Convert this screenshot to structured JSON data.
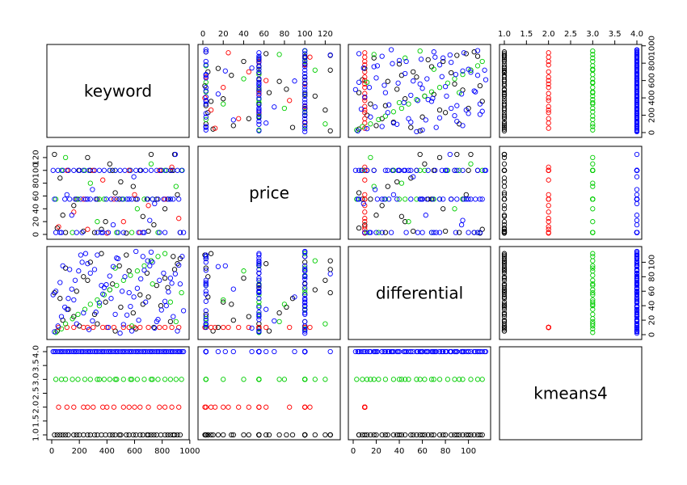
{
  "chart_data": {
    "type": "scatter",
    "kind": "scatterplot-matrix",
    "variables": [
      {
        "name": "keyword",
        "axis_ticks": [
          0,
          200,
          400,
          600,
          800,
          1000
        ],
        "tick_labels": [
          "0",
          "200",
          "400",
          "600",
          "800",
          "1000"
        ],
        "range": [
          0,
          960
        ]
      },
      {
        "name": "price",
        "axis_ticks": [
          0,
          20,
          40,
          60,
          80,
          100,
          120
        ],
        "tick_labels": [
          "0",
          "20",
          "40",
          "60",
          "80",
          "100",
          "120"
        ],
        "range": [
          0,
          130
        ]
      },
      {
        "name": "differential",
        "axis_ticks": [
          0,
          20,
          40,
          60,
          80,
          100
        ],
        "tick_labels": [
          "0",
          "20",
          "40",
          "60",
          "80",
          "100"
        ],
        "range": [
          0,
          115
        ]
      },
      {
        "name": "kmeans4",
        "axis_ticks": [
          1.0,
          1.5,
          2.0,
          2.5,
          3.0,
          3.5,
          4.0
        ],
        "tick_labels": [
          "1.0",
          "1.5",
          "2.0",
          "2.5",
          "3.0",
          "3.5",
          "4.0"
        ],
        "range": [
          1,
          4
        ]
      }
    ],
    "cluster_colors": {
      "1": "#000000",
      "2": "#ff0000",
      "3": "#00cd00",
      "4": "#0000ff"
    },
    "series": [
      {
        "cluster": 1,
        "color": "#000000",
        "points": [
          [
            40,
            10,
            5
          ],
          [
            80,
            30,
            20
          ],
          [
            120,
            100,
            35
          ],
          [
            180,
            55,
            60
          ],
          [
            230,
            5,
            80
          ],
          [
            280,
            100,
            100
          ],
          [
            330,
            55,
            15
          ],
          [
            390,
            20,
            45
          ],
          [
            440,
            100,
            70
          ],
          [
            490,
            55,
            95
          ],
          [
            540,
            2,
            110
          ],
          [
            590,
            75,
            30
          ],
          [
            640,
            100,
            55
          ],
          [
            690,
            55,
            85
          ],
          [
            740,
            15,
            10
          ],
          [
            790,
            100,
            40
          ],
          [
            840,
            55,
            65
          ],
          [
            890,
            125,
            90
          ],
          [
            930,
            3,
            105
          ],
          [
            60,
            88,
            50
          ],
          [
            160,
            45,
            25
          ],
          [
            260,
            120,
            75
          ],
          [
            360,
            8,
            112
          ],
          [
            460,
            65,
            5
          ],
          [
            560,
            100,
            88
          ],
          [
            660,
            28,
            42
          ],
          [
            760,
            55,
            68
          ],
          [
            860,
            100,
            18
          ],
          [
            910,
            62,
            98
          ],
          [
            20,
            125,
            58
          ],
          [
            310,
            3,
            28
          ],
          [
            610,
            55,
            8
          ],
          [
            720,
            125,
            102
          ],
          [
            820,
            40,
            78
          ],
          [
            420,
            110,
            62
          ],
          [
            100,
            3,
            92
          ],
          [
            200,
            100,
            12
          ],
          [
            500,
            82,
            38
          ],
          [
            700,
            5,
            52
          ],
          [
            880,
            100,
            108
          ]
        ]
      },
      {
        "cluster": 2,
        "color": "#ff0000",
        "points": [
          [
            50,
            12,
            10
          ],
          [
            110,
            100,
            10
          ],
          [
            160,
            35,
            10
          ],
          [
            230,
            55,
            10
          ],
          [
            260,
            8,
            10
          ],
          [
            300,
            100,
            10
          ],
          [
            370,
            85,
            10
          ],
          [
            400,
            2,
            10
          ],
          [
            450,
            55,
            10
          ],
          [
            520,
            20,
            10
          ],
          [
            560,
            100,
            10
          ],
          [
            600,
            62,
            10
          ],
          [
            640,
            3,
            10
          ],
          [
            700,
            45,
            10
          ],
          [
            780,
            100,
            10
          ],
          [
            820,
            55,
            10
          ],
          [
            870,
            105,
            10
          ],
          [
            920,
            25,
            10
          ]
        ]
      },
      {
        "cluster": 3,
        "color": "#00cd00",
        "points": [
          [
            30,
            55,
            3
          ],
          [
            70,
            100,
            8
          ],
          [
            100,
            120,
            15
          ],
          [
            150,
            3,
            22
          ],
          [
            190,
            55,
            28
          ],
          [
            240,
            100,
            35
          ],
          [
            280,
            80,
            42
          ],
          [
            330,
            20,
            48
          ],
          [
            380,
            55,
            55
          ],
          [
            420,
            100,
            62
          ],
          [
            470,
            3,
            68
          ],
          [
            520,
            55,
            75
          ],
          [
            570,
            100,
            82
          ],
          [
            620,
            40,
            88
          ],
          [
            670,
            55,
            95
          ],
          [
            720,
            110,
            102
          ],
          [
            770,
            3,
            108
          ],
          [
            820,
            100,
            112
          ],
          [
            860,
            55,
            45
          ],
          [
            900,
            75,
            18
          ],
          [
            940,
            100,
            58
          ],
          [
            345,
            55,
            40
          ],
          [
            460,
            100,
            92
          ],
          [
            580,
            3,
            12
          ],
          [
            730,
            55,
            70
          ]
        ]
      },
      {
        "cluster": 4,
        "color": "#0000ff",
        "points": [
          [
            20,
            55,
            4
          ],
          [
            45,
            100,
            12
          ],
          [
            70,
            3,
            25
          ],
          [
            95,
            55,
            38
          ],
          [
            120,
            100,
            50
          ],
          [
            145,
            30,
            63
          ],
          [
            170,
            55,
            75
          ],
          [
            195,
            100,
            88
          ],
          [
            220,
            3,
            100
          ],
          [
            245,
            55,
            112
          ],
          [
            270,
            100,
            7
          ],
          [
            295,
            70,
            19
          ],
          [
            320,
            55,
            31
          ],
          [
            345,
            100,
            44
          ],
          [
            370,
            3,
            56
          ],
          [
            395,
            55,
            69
          ],
          [
            420,
            100,
            81
          ],
          [
            445,
            15,
            94
          ],
          [
            470,
            55,
            106
          ],
          [
            495,
            100,
            2
          ],
          [
            520,
            3,
            14
          ],
          [
            545,
            55,
            27
          ],
          [
            570,
            100,
            39
          ],
          [
            595,
            90,
            52
          ],
          [
            620,
            55,
            64
          ],
          [
            645,
            100,
            77
          ],
          [
            670,
            3,
            89
          ],
          [
            695,
            55,
            102
          ],
          [
            720,
            100,
            114
          ],
          [
            745,
            48,
            9
          ],
          [
            770,
            55,
            21
          ],
          [
            795,
            100,
            34
          ],
          [
            820,
            3,
            46
          ],
          [
            845,
            55,
            59
          ],
          [
            870,
            100,
            71
          ],
          [
            895,
            125,
            84
          ],
          [
            920,
            55,
            96
          ],
          [
            945,
            100,
            108
          ],
          [
            30,
            3,
            60
          ],
          [
            130,
            55,
            90
          ],
          [
            230,
            100,
            30
          ],
          [
            330,
            3,
            110
          ],
          [
            430,
            55,
            50
          ],
          [
            530,
            100,
            80
          ],
          [
            630,
            3,
            20
          ],
          [
            730,
            55,
            100
          ],
          [
            830,
            100,
            40
          ],
          [
            930,
            3,
            70
          ],
          [
            80,
            100,
            95
          ],
          [
            180,
            3,
            15
          ],
          [
            280,
            55,
            85
          ],
          [
            380,
            100,
            65
          ],
          [
            480,
            3,
            105
          ],
          [
            580,
            55,
            5
          ],
          [
            680,
            100,
            45
          ],
          [
            780,
            3,
            75
          ],
          [
            880,
            55,
            25
          ],
          [
            10,
            100,
            55
          ],
          [
            110,
            62,
            35
          ],
          [
            210,
            55,
            110
          ],
          [
            310,
            100,
            90
          ],
          [
            410,
            3,
            10
          ],
          [
            510,
            55,
            60
          ],
          [
            610,
            100,
            115
          ],
          [
            710,
            22,
            95
          ],
          [
            810,
            55,
            85
          ],
          [
            910,
            100,
            5
          ],
          [
            60,
            3,
            72
          ],
          [
            160,
            100,
            48
          ],
          [
            260,
            55,
            98
          ],
          [
            360,
            3,
            68
          ],
          [
            460,
            100,
            28
          ],
          [
            560,
            55,
            58
          ],
          [
            660,
            3,
            108
          ],
          [
            760,
            100,
            18
          ],
          [
            860,
            55,
            78
          ],
          [
            955,
            3,
            33
          ]
        ]
      }
    ]
  }
}
